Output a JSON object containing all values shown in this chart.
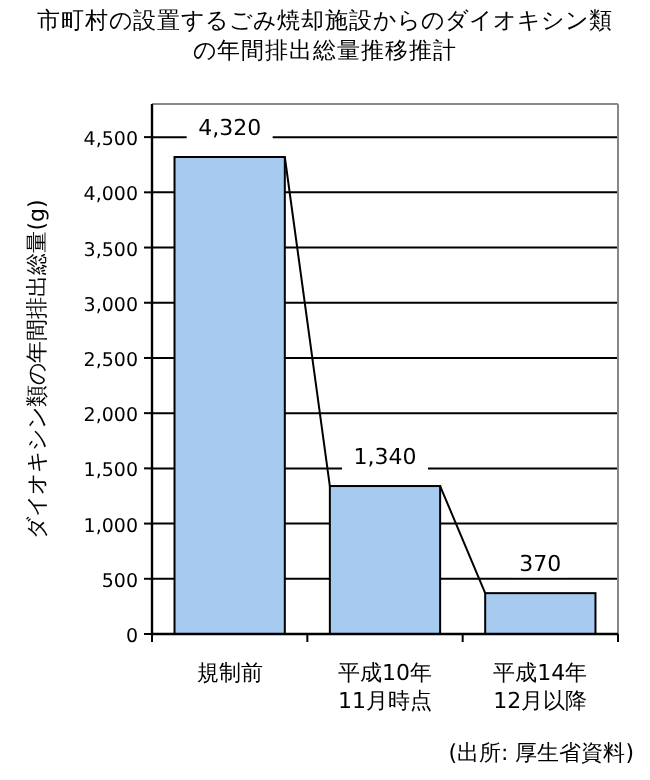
{
  "chart_data": {
    "type": "bar",
    "title": "市町村の設置するごみ焼却施設からのダイオキシン類の年間排出総量推移推計",
    "ylabel": "ダイオキシン類の年間排出総量(g)",
    "categories": [
      "規制前",
      "平成10年\n11月時点",
      "平成14年\n12月以降"
    ],
    "values": [
      4320,
      1340,
      370
    ],
    "value_labels": [
      "4,320",
      "1,340",
      "370"
    ],
    "color": "#a6caf0",
    "ylim": [
      0,
      4800
    ],
    "yticks": [
      0,
      500,
      {
        "value": 1000,
        "label": "1,000"
      },
      {
        "value": 1500,
        "label": "1,500"
      },
      {
        "value": 2000,
        "label": "2,000"
      },
      {
        "value": 2500,
        "label": "2,500"
      },
      {
        "value": 3000,
        "label": "3,000"
      },
      {
        "value": 3500,
        "label": "3,500"
      },
      {
        "value": 4000,
        "label": "4,000"
      },
      {
        "value": 4500,
        "label": "4,500"
      }
    ],
    "grid": "y",
    "annotations": [
      "(出所: 厚生省資料)"
    ]
  }
}
